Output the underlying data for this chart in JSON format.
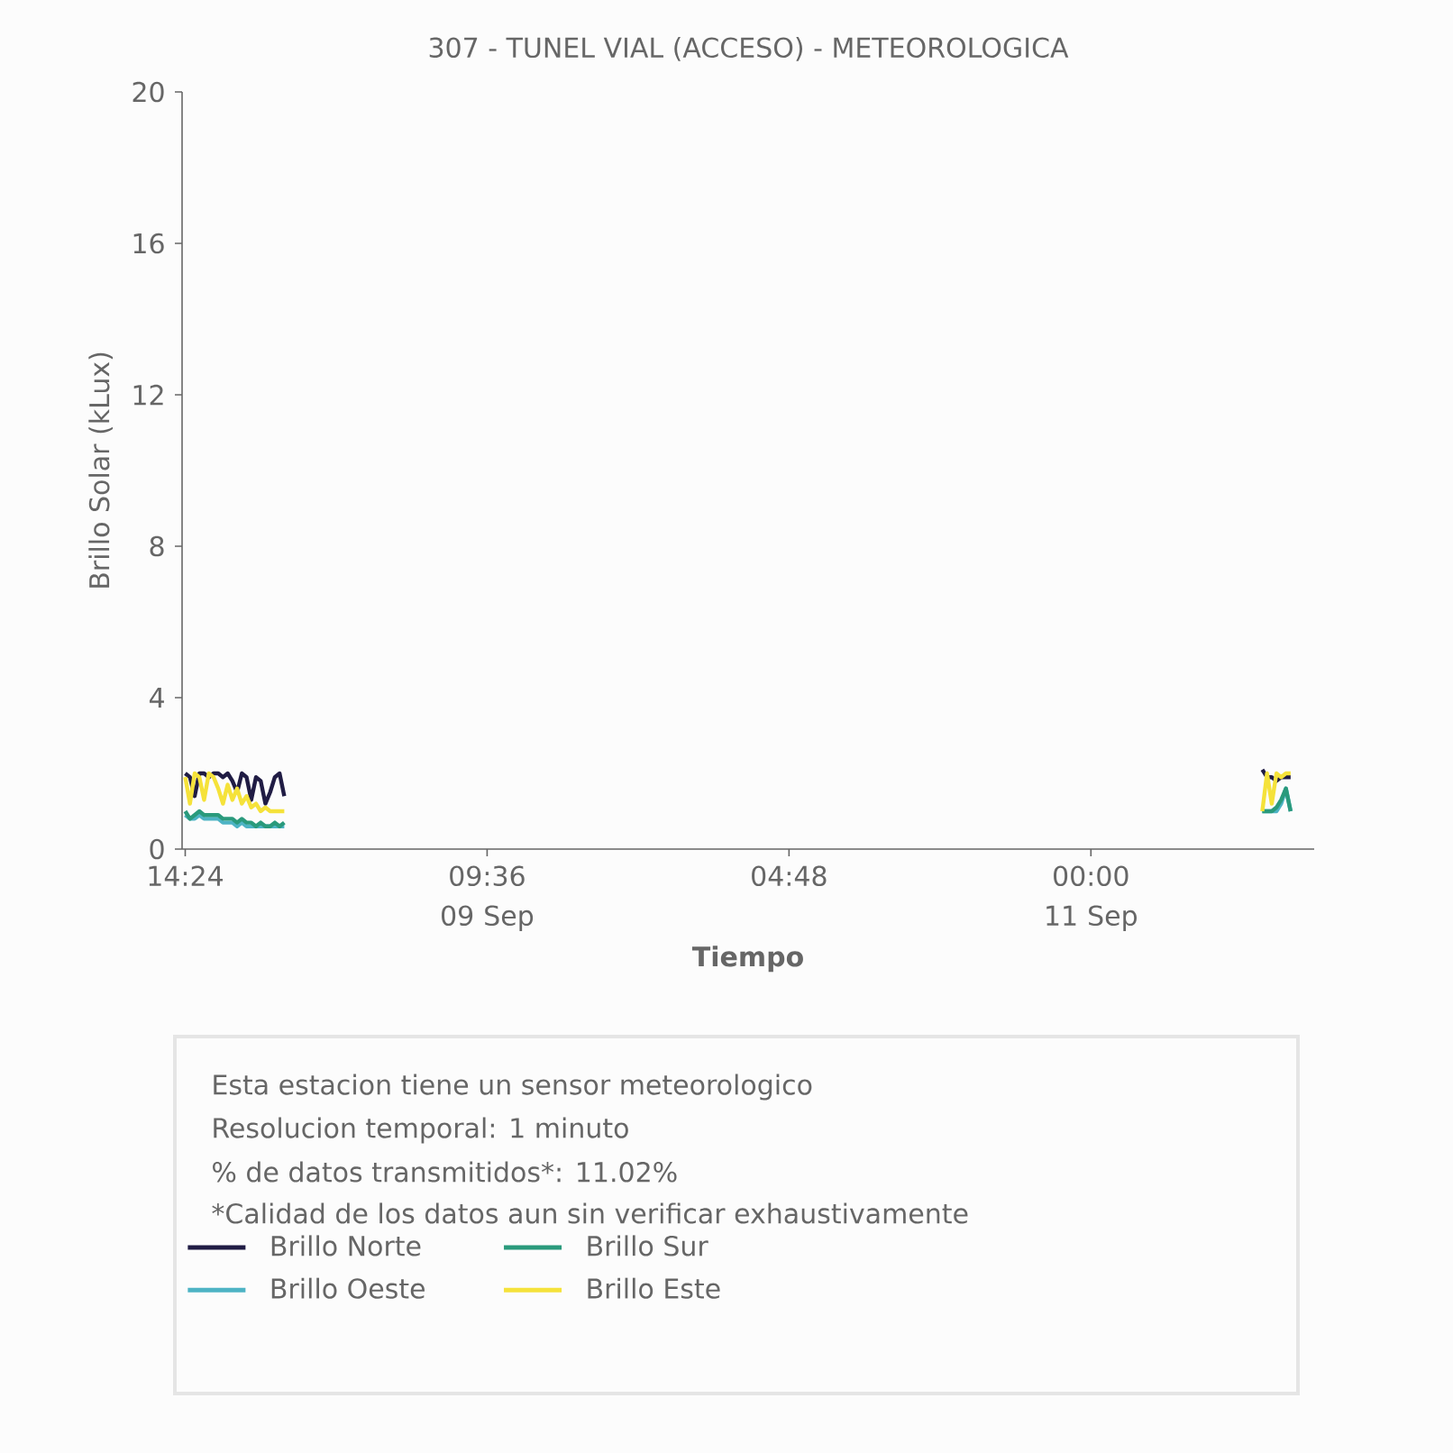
{
  "chart_data": {
    "type": "line",
    "title": "307 - TUNEL VIAL (ACCESO) - METEOROLOGICA",
    "xlabel": "Tiempo",
    "ylabel": "Brillo Solar (kLux)",
    "x": [
      "--09-08T14:24",
      "--09-08T14:42",
      "--09-08T15:00",
      "--09-08T15:18",
      "--09-08T15:36",
      "--09-08T15:54",
      "--09-08T16:12",
      "--09-08T16:30",
      "--09-08T16:48",
      "--09-08T17:06",
      "--09-08T17:24",
      "--09-08T17:42",
      "--09-08T18:00",
      "--09-08T18:18",
      "--09-08T18:36",
      "--09-08T18:54",
      "--09-08T19:12",
      "--09-08T19:30",
      "--09-08T19:48",
      "--09-08T20:06",
      "--09-08T20:24",
      "--09-08T20:42",
      "--09-10T02:00",
      "--09-11T10:54",
      "--09-11T11:12",
      "--09-11T11:30",
      "--09-11T11:48",
      "--09-11T12:06",
      "--09-11T12:24",
      "--09-11T12:42"
    ],
    "series": [
      {
        "name": "Brillo Norte",
        "color": "#201c44",
        "values": [
          2.0,
          1.9,
          1.4,
          2.0,
          2.0,
          1.9,
          2.0,
          2.0,
          1.9,
          2.0,
          1.8,
          1.5,
          2.0,
          1.9,
          1.3,
          1.9,
          1.8,
          1.2,
          1.5,
          1.9,
          2.0,
          1.4,
          null,
          2.1,
          1.9,
          1.9,
          1.8,
          1.9,
          1.9,
          1.9
        ]
      },
      {
        "name": "Brillo Oeste",
        "color": "#4db3c4",
        "values": [
          0.9,
          0.8,
          0.8,
          0.9,
          0.8,
          0.8,
          0.8,
          0.8,
          0.7,
          0.7,
          0.7,
          0.6,
          0.7,
          0.6,
          0.6,
          0.6,
          0.6,
          0.6,
          0.6,
          0.6,
          0.6,
          0.6,
          null,
          1.0,
          1.0,
          1.0,
          1.0,
          1.2,
          1.6,
          1.0
        ]
      },
      {
        "name": "Brillo Sur",
        "color": "#2a9a7c",
        "values": [
          1.0,
          0.8,
          0.9,
          1.0,
          0.9,
          0.9,
          0.9,
          0.9,
          0.8,
          0.8,
          0.8,
          0.7,
          0.8,
          0.7,
          0.7,
          0.6,
          0.7,
          0.6,
          0.6,
          0.7,
          0.6,
          0.7,
          null,
          1.0,
          1.0,
          1.0,
          1.1,
          1.3,
          1.6,
          1.0
        ]
      },
      {
        "name": "Brillo Este",
        "color": "#f5e23a",
        "values": [
          1.9,
          1.2,
          2.0,
          1.9,
          1.3,
          2.0,
          1.9,
          1.6,
          1.2,
          1.7,
          1.3,
          1.6,
          1.2,
          1.4,
          1.1,
          1.2,
          1.0,
          1.1,
          1.0,
          1.0,
          1.0,
          1.0,
          null,
          1.0,
          2.0,
          1.2,
          2.0,
          1.9,
          2.0,
          2.0
        ]
      }
    ],
    "xlim": [
      "--09-08T14:12",
      "--09-11T14:12"
    ],
    "xticks": [
      {
        "value": "--09-08T14:24",
        "label": "14:24"
      },
      {
        "value": "--09-09T09:36",
        "label": "09:36 09 Sep"
      },
      {
        "value": "--09-10T04:48",
        "label": "04:48"
      },
      {
        "value": "--09-11T00:00",
        "label": "00:00 11 Sep"
      }
    ],
    "ylim": [
      0,
      20
    ],
    "yticks": [
      0,
      4,
      8,
      12,
      16,
      20
    ],
    "legend": "bottom",
    "annotations": [
      "Esta estacion tiene un sensor meteorologico",
      "Resolucion temporal: 1 minuto",
      "% de datos transmitidos*: 11.02%",
      "*Calidad de los datos aun sin verificar exhaustivamente"
    ]
  }
}
